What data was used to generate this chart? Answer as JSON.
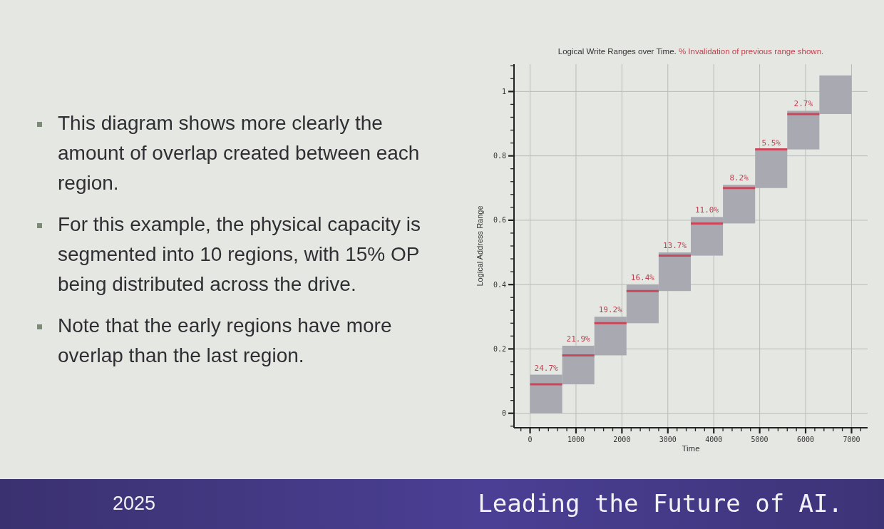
{
  "chart_data": {
    "type": "bar",
    "title": "Logical Write Ranges over Time.",
    "subtitle": "% Invalidation of previous range shown.",
    "xlabel": "Time",
    "ylabel": "Logical Address Range",
    "xlim": [
      -350,
      7350
    ],
    "ylim": [
      -0.045,
      1.085
    ],
    "xticks": [
      {
        "value": -200,
        "label": null
      },
      0,
      {
        "value": 200,
        "label": null
      },
      {
        "value": 400,
        "label": null
      },
      {
        "value": 600,
        "label": null
      },
      {
        "value": 800,
        "label": null
      },
      1000,
      {
        "value": 1200,
        "label": null
      },
      {
        "value": 1400,
        "label": null
      },
      {
        "value": 1600,
        "label": null
      },
      {
        "value": 1800,
        "label": null
      },
      2000,
      {
        "value": 2200,
        "label": null
      },
      {
        "value": 2400,
        "label": null
      },
      {
        "value": 2600,
        "label": null
      },
      {
        "value": 2800,
        "label": null
      },
      3000,
      {
        "value": 3200,
        "label": null
      },
      {
        "value": 3400,
        "label": null
      },
      {
        "value": 3600,
        "label": null
      },
      {
        "value": 3800,
        "label": null
      },
      4000,
      {
        "value": 4200,
        "label": null
      },
      {
        "value": 4400,
        "label": null
      },
      {
        "value": 4600,
        "label": null
      },
      {
        "value": 4800,
        "label": null
      },
      5000,
      {
        "value": 5200,
        "label": null
      },
      {
        "value": 5400,
        "label": null
      },
      {
        "value": 5600,
        "label": null
      },
      {
        "value": 5800,
        "label": null
      },
      6000,
      {
        "value": 6200,
        "label": null
      },
      {
        "value": 6400,
        "label": null
      },
      {
        "value": 6600,
        "label": null
      },
      {
        "value": 6800,
        "label": null
      },
      7000,
      {
        "value": 7200,
        "label": null
      }
    ],
    "yticks": [
      {
        "value": -0.04,
        "label": null
      },
      0,
      {
        "value": 0.04,
        "label": null
      },
      {
        "value": 0.08,
        "label": null
      },
      {
        "value": 0.12,
        "label": null
      },
      {
        "value": 0.16,
        "label": null
      },
      0.2,
      {
        "value": 0.24,
        "label": null
      },
      {
        "value": 0.28,
        "label": null
      },
      {
        "value": 0.32,
        "label": null
      },
      {
        "value": 0.36,
        "label": null
      },
      0.4,
      {
        "value": 0.44,
        "label": null
      },
      {
        "value": 0.48,
        "label": null
      },
      {
        "value": 0.52,
        "label": null
      },
      {
        "value": 0.56,
        "label": null
      },
      0.6,
      {
        "value": 0.64,
        "label": null
      },
      {
        "value": 0.68,
        "label": null
      },
      {
        "value": 0.72,
        "label": null
      },
      {
        "value": 0.76,
        "label": null
      },
      0.8,
      {
        "value": 0.84,
        "label": null
      },
      {
        "value": 0.88,
        "label": null
      },
      {
        "value": 0.92,
        "label": null
      },
      {
        "value": 0.96,
        "label": null
      },
      1,
      {
        "value": 1.04,
        "label": null
      },
      {
        "value": 1.08,
        "label": null
      }
    ],
    "grid": true,
    "series": [
      {
        "color": "#a9a9b1",
        "x": [
          350,
          1050,
          1750,
          2450,
          3150,
          3850,
          4550,
          5250,
          5950,
          6650
        ],
        "base": [
          0,
          0.09,
          0.18,
          0.28,
          0.38,
          0.49,
          0.59,
          0.7,
          0.82,
          0.93
        ],
        "values": [
          0.12,
          0.12,
          0.12,
          0.12,
          0.12,
          0.12,
          0.12,
          0.12,
          0.12,
          0.12
        ]
      },
      {
        "type": "line",
        "color": "#c8475a",
        "x": [
          0,
          700
        ],
        "values": [
          0.09,
          0.09
        ]
      },
      {
        "type": "line",
        "color": "#c8475a",
        "x": [
          700,
          1400
        ],
        "values": [
          0.18,
          0.18
        ]
      },
      {
        "type": "line",
        "color": "#c8475a",
        "x": [
          1400,
          2100
        ],
        "values": [
          0.28,
          0.28
        ]
      },
      {
        "type": "line",
        "color": "#c8475a",
        "x": [
          2100,
          2800
        ],
        "values": [
          0.38,
          0.38
        ]
      },
      {
        "type": "line",
        "color": "#c8475a",
        "x": [
          2800,
          3500
        ],
        "values": [
          0.49,
          0.49
        ]
      },
      {
        "type": "line",
        "color": "#c8475a",
        "x": [
          3500,
          4200
        ],
        "values": [
          0.59,
          0.59
        ]
      },
      {
        "type": "line",
        "color": "#c8475a",
        "x": [
          4200,
          4900
        ],
        "values": [
          0.7,
          0.7
        ]
      },
      {
        "type": "line",
        "color": "#c8475a",
        "x": [
          4900,
          5600
        ],
        "values": [
          0.82,
          0.82
        ]
      },
      {
        "type": "line",
        "color": "#c8475a",
        "x": [
          5600,
          6300
        ],
        "values": [
          0.93,
          0.93
        ]
      }
    ],
    "annotations": [
      {
        "text": "24.7%",
        "x": 350,
        "y": 0.12
      },
      {
        "text": "21.9%",
        "x": 1050,
        "y": 0.21
      },
      {
        "text": "19.2%",
        "x": 1750,
        "y": 0.3
      },
      {
        "text": "16.4%",
        "x": 2450,
        "y": 0.4
      },
      {
        "text": "13.7%",
        "x": 3150,
        "y": 0.5
      },
      {
        "text": "11.0%",
        "x": 3850,
        "y": 0.61
      },
      {
        "text": "8.2%",
        "x": 4550,
        "y": 0.71
      },
      {
        "text": "5.5%",
        "x": 5250,
        "y": 0.82
      },
      {
        "text": "2.7%",
        "x": 5950,
        "y": 0.94
      },
      "This diagram shows more clearly the amount of overlap created between each region.",
      "For this example, the physical capacity is segmented into 10 regions, with 15% OP being distributed across the drive.",
      "Note that the early regions have more overlap than the last region.",
      "2025",
      "Leading the Future of AI."
    ]
  }
}
